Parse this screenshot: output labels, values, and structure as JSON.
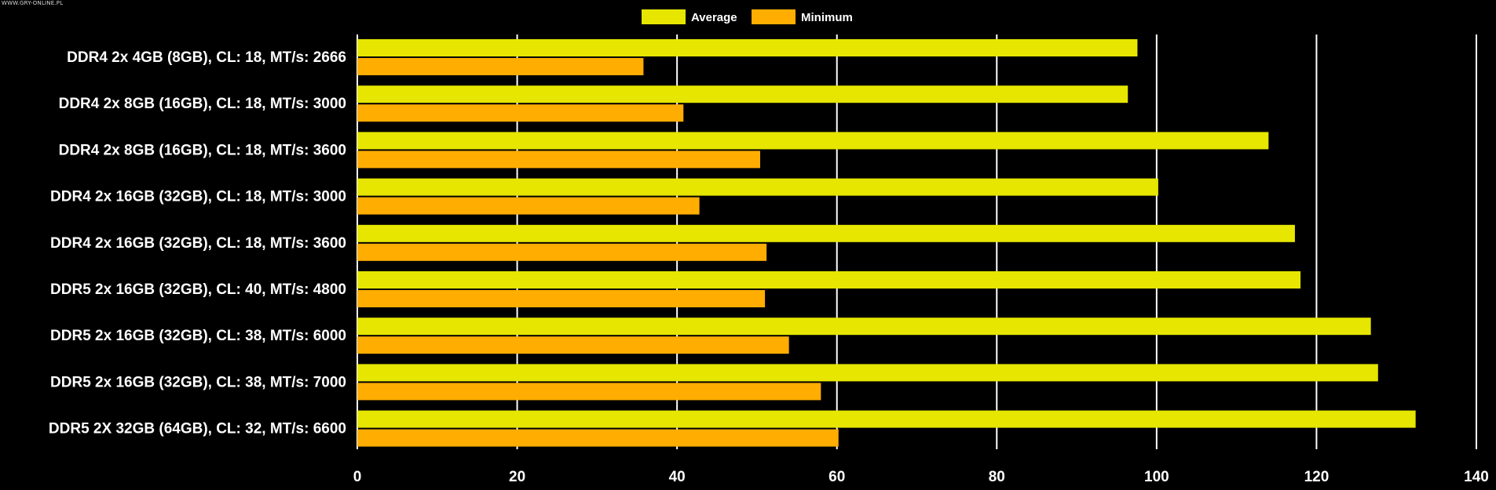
{
  "watermark": "WWW.GRY-ONLINE.PL",
  "colors": {
    "background": "#000000",
    "grid": "#ffffff",
    "text": "#ffffff",
    "average": "#e6e600",
    "minimum": "#ffad00"
  },
  "chart_data": {
    "type": "bar",
    "orientation": "horizontal",
    "title": "",
    "xlabel": "",
    "ylabel": "",
    "xlim": [
      0,
      140
    ],
    "ticks": [
      0,
      20,
      40,
      60,
      80,
      100,
      120,
      140
    ],
    "grid": true,
    "legend_position": "top-center",
    "categories": [
      "DDR4 2x 4GB (8GB), CL: 18, MT/s: 2666",
      "DDR4 2x 8GB (16GB), CL: 18, MT/s: 3000",
      "DDR4 2x 8GB (16GB), CL: 18, MT/s: 3600",
      "DDR4 2x 16GB (32GB), CL: 18, MT/s: 3000",
      "DDR4 2x 16GB (32GB), CL: 18, MT/s: 3600",
      "DDR5 2x 16GB (32GB), CL: 40, MT/s: 4800",
      "DDR5 2x 16GB (32GB), CL: 38, MT/s: 6000",
      "DDR5 2x 16GB (32GB), CL: 38, MT/s: 7000",
      "DDR5 2X 32GB (64GB), CL: 32, MT/s: 6600"
    ],
    "series": [
      {
        "name": "Average",
        "color": "#e6e600",
        "values": [
          97.6,
          96.4,
          114.0,
          100.2,
          117.3,
          118.0,
          126.8,
          127.7,
          132.4
        ]
      },
      {
        "name": "Minimum",
        "color": "#ffad00",
        "values": [
          35.8,
          40.8,
          50.4,
          42.8,
          51.2,
          51.0,
          54.0,
          58.0,
          60.2
        ]
      }
    ]
  }
}
